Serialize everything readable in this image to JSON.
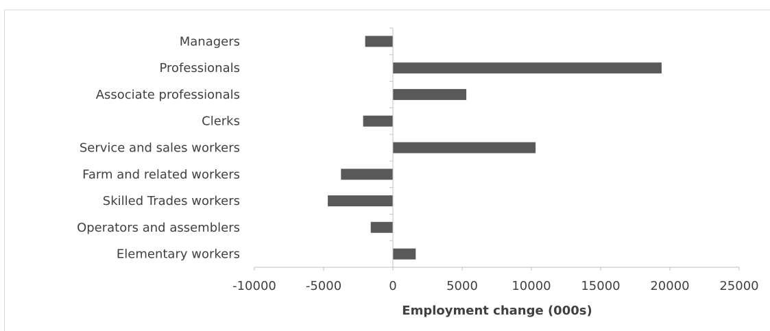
{
  "chart_data": {
    "type": "bar",
    "orientation": "horizontal",
    "categories": [
      "Managers",
      "Professionals",
      "Associate professionals",
      "Clerks",
      "Service and sales workers",
      "Farm and related workers",
      "Skilled Trades workers",
      "Operators and assemblers",
      "Elementary workers"
    ],
    "values": [
      -2000,
      19400,
      5300,
      -2150,
      10300,
      -3750,
      -4700,
      -1600,
      1650
    ],
    "xlabel": "Employment change (000s)",
    "ylabel": "",
    "title": "",
    "xlim": [
      -10000,
      25000
    ],
    "xticks": [
      "-10000",
      "-5000",
      "0",
      "5000",
      "10000",
      "15000",
      "20000",
      "25000"
    ],
    "grid": false,
    "legend": "none",
    "bar_color": "#595959",
    "axis_color": "#bfbfbf",
    "text_color": "#404040"
  }
}
